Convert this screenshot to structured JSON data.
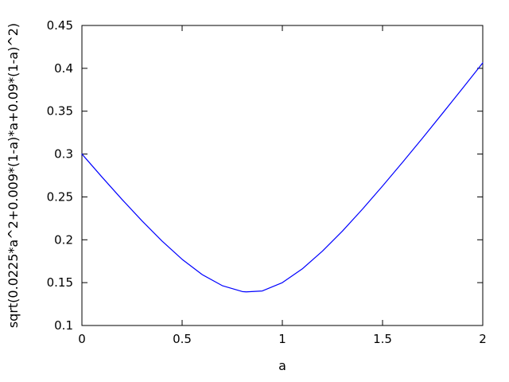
{
  "chart_data": {
    "type": "line",
    "title": "",
    "xlabel": "a",
    "ylabel": "sqrt(0.0225*a^2+0.009*(1-a)*a+0.09*(1-a)^2)",
    "xlim": [
      0,
      2
    ],
    "ylim": [
      0.1,
      0.45
    ],
    "xticks": [
      0,
      0.5,
      1,
      1.5,
      2
    ],
    "xtick_labels": [
      "0",
      "0.5",
      "1",
      "1.5",
      "2"
    ],
    "yticks": [
      0.1,
      0.15,
      0.2,
      0.25,
      0.3,
      0.35,
      0.4,
      0.45
    ],
    "ytick_labels": [
      "0.1",
      "0.15",
      "0.2",
      "0.25",
      "0.3",
      "0.35",
      "0.4",
      "0.45"
    ],
    "grid": false,
    "line_color": "#0000ff",
    "series": [
      {
        "x": [
          0,
          0.1,
          0.2,
          0.3,
          0.4,
          0.5,
          0.6,
          0.7,
          0.8,
          0.82,
          0.9,
          1.0,
          1.1,
          1.2,
          1.3,
          1.4,
          1.5,
          1.6,
          1.7,
          1.8,
          1.9,
          2.0
        ],
        "y": [
          0.3,
          0.2732,
          0.2471,
          0.222,
          0.1985,
          0.1772,
          0.1594,
          0.1465,
          0.1396,
          0.1392,
          0.1403,
          0.15,
          0.1661,
          0.1867,
          0.2102,
          0.2358,
          0.2627,
          0.2904,
          0.3188,
          0.3477,
          0.3769,
          0.4064
        ]
      }
    ]
  }
}
